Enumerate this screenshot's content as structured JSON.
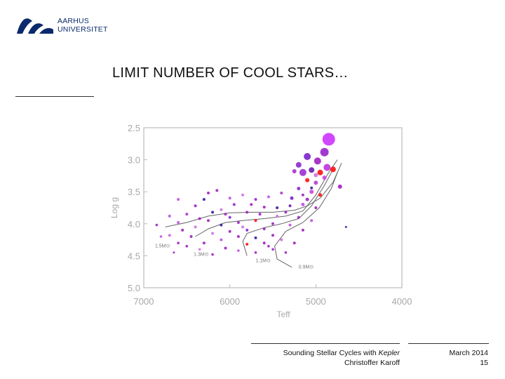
{
  "header": {
    "university_line1": "AARHUS",
    "university_line2": "UNIVERSITET",
    "title": "LIMIT NUMBER OF COOL STARS…"
  },
  "footer": {
    "subtitle_prefix": "Sounding Stellar Cycles with ",
    "subtitle_italic": "Kepler",
    "author": "Christoffer Karoff",
    "date": "March 2014",
    "page": "15"
  },
  "colors": {
    "brand": "#0a2a6b",
    "star_primary": "#a020c0",
    "star_dark": "#3a1aa0",
    "star_light": "#d070e0",
    "star_red": "#ff1010",
    "track": "#666666"
  },
  "chart_data": {
    "type": "scatter",
    "title": "",
    "xlabel": "Teff",
    "ylabel": "Log g",
    "xlim": [
      7000,
      4000
    ],
    "ylim": [
      5.0,
      2.5
    ],
    "x_reversed": true,
    "y_reversed": true,
    "x_ticks": [
      7000,
      6000,
      5000,
      4000
    ],
    "x_tick_labels": [
      "7000",
      "6000",
      "5000",
      "4000"
    ],
    "y_ticks": [
      2.5,
      3.0,
      3.5,
      4.0,
      4.5,
      5.0
    ],
    "y_tick_labels": [
      "2.5",
      "3.0",
      "3.5",
      "4.0",
      "4.5",
      "5.0"
    ],
    "grid": false,
    "tracks": [
      {
        "label": "1.5M⊙",
        "label_at": [
          6870,
          4.37
        ],
        "points": [
          [
            6750,
            4.05
          ],
          [
            6500,
            3.98
          ],
          [
            6250,
            3.88
          ],
          [
            6000,
            3.83
          ],
          [
            5750,
            3.82
          ],
          [
            5500,
            3.82
          ],
          [
            5250,
            3.79
          ],
          [
            5100,
            3.72
          ],
          [
            4950,
            3.6
          ],
          [
            4800,
            3.35
          ],
          [
            4700,
            3.05
          ]
        ]
      },
      {
        "label": "1.3M⊙",
        "label_at": [
          6420,
          4.5
        ],
        "points": [
          [
            6400,
            4.2
          ],
          [
            6250,
            4.08
          ],
          [
            6050,
            3.98
          ],
          [
            5850,
            3.95
          ],
          [
            5600,
            3.92
          ],
          [
            5350,
            3.88
          ],
          [
            5150,
            3.8
          ],
          [
            5000,
            3.55
          ],
          [
            4850,
            3.2
          ],
          [
            4750,
            3.0
          ]
        ]
      },
      {
        "label": "1.1M⊙",
        "label_at": [
          5700,
          4.6
        ],
        "points": [
          [
            5800,
            4.5
          ],
          [
            5850,
            4.28
          ],
          [
            5800,
            4.15
          ],
          [
            5600,
            4.06
          ],
          [
            5400,
            4.0
          ],
          [
            5200,
            3.92
          ],
          [
            5050,
            3.72
          ],
          [
            4900,
            3.4
          ],
          [
            4800,
            3.15
          ]
        ]
      },
      {
        "label": "0.9M⊙",
        "label_at": [
          5200,
          4.7
        ],
        "points": [
          [
            5280,
            4.68
          ],
          [
            5450,
            4.55
          ],
          [
            5480,
            4.35
          ],
          [
            5350,
            4.12
          ],
          [
            5150,
            3.98
          ],
          [
            4960,
            3.75
          ],
          [
            4820,
            3.45
          ],
          [
            4750,
            3.2
          ]
        ]
      }
    ],
    "series": [
      {
        "points": [
          [
            4850,
            2.68,
            9,
            "#cc33ff"
          ],
          [
            4900,
            2.88,
            6,
            "#9922cc"
          ],
          [
            5100,
            2.95,
            5,
            "#7a22cc"
          ],
          [
            4980,
            3.02,
            5,
            "#a020c0"
          ],
          [
            5200,
            3.08,
            4,
            "#8a2ad0"
          ],
          [
            4870,
            3.12,
            5,
            "#bb33dd"
          ],
          [
            5050,
            3.16,
            4,
            "#6a1ab0"
          ],
          [
            5150,
            3.2,
            5,
            "#9a30d0"
          ],
          [
            4950,
            3.2,
            4,
            "#ff1010"
          ],
          [
            4800,
            3.15,
            4,
            "#ff1010"
          ],
          [
            5000,
            3.24,
            3,
            "#d070e0"
          ],
          [
            5250,
            3.18,
            3,
            "#aa33cc"
          ],
          [
            4900,
            3.28,
            3,
            "#cc44dd"
          ],
          [
            5100,
            3.32,
            3,
            "#ff1010"
          ],
          [
            5000,
            3.36,
            3,
            "#b040d0"
          ],
          [
            4720,
            3.42,
            3,
            "#a020c0"
          ],
          [
            5200,
            3.45,
            2.5,
            "#8a2ad0"
          ],
          [
            5050,
            3.5,
            3,
            "#cc44dd"
          ],
          [
            5280,
            3.6,
            2.5,
            "#7a22cc"
          ],
          [
            5100,
            3.62,
            2.5,
            "#a020c0"
          ],
          [
            4950,
            3.55,
            2.5,
            "#ff1010"
          ],
          [
            5150,
            3.7,
            2.5,
            "#c050e0"
          ],
          [
            5000,
            3.75,
            2,
            "#a020c0"
          ],
          [
            5300,
            3.72,
            2,
            "#6a1ab0"
          ],
          [
            5400,
            3.52,
            2,
            "#aa33cc"
          ],
          [
            5550,
            3.58,
            2,
            "#c050e0"
          ],
          [
            5700,
            3.62,
            2,
            "#9922cc"
          ],
          [
            5850,
            3.55,
            2,
            "#d070e0"
          ],
          [
            6150,
            3.48,
            2,
            "#a020c0"
          ],
          [
            6300,
            3.62,
            2,
            "#3a1aa0"
          ],
          [
            6600,
            3.62,
            2,
            "#c050e0"
          ],
          [
            5600,
            3.74,
            2,
            "#a020c0"
          ],
          [
            5950,
            3.7,
            2,
            "#8a2ad0"
          ],
          [
            6100,
            3.78,
            2,
            "#d070e0"
          ],
          [
            6400,
            3.72,
            2,
            "#a020c0"
          ],
          [
            6200,
            3.82,
            2,
            "#3a1aa0"
          ],
          [
            6500,
            3.85,
            2,
            "#aa33cc"
          ],
          [
            6700,
            3.88,
            2,
            "#c050e0"
          ],
          [
            5800,
            3.82,
            2,
            "#a020c0"
          ],
          [
            5650,
            3.85,
            2,
            "#9922cc"
          ],
          [
            5450,
            3.88,
            2,
            "#d070e0"
          ],
          [
            5350,
            3.82,
            2,
            "#a020c0"
          ],
          [
            6000,
            3.9,
            2,
            "#8a2ad0"
          ],
          [
            6250,
            3.95,
            2,
            "#a020c0"
          ],
          [
            6600,
            3.98,
            2,
            "#c050e0"
          ],
          [
            6850,
            4.02,
            1.8,
            "#a020c0"
          ],
          [
            5700,
            3.95,
            2,
            "#ff1010"
          ],
          [
            5900,
            3.98,
            2,
            "#a020c0"
          ],
          [
            6100,
            4.02,
            2,
            "#3a1aa0"
          ],
          [
            6400,
            4.05,
            2,
            "#d070e0"
          ],
          [
            6550,
            4.1,
            2,
            "#a020c0"
          ],
          [
            5500,
            4.0,
            2,
            "#9922cc"
          ],
          [
            5300,
            4.02,
            2,
            "#c050e0"
          ],
          [
            5600,
            4.08,
            2,
            "#a020c0"
          ],
          [
            5800,
            4.1,
            2,
            "#8a2ad0"
          ],
          [
            6000,
            4.12,
            2,
            "#a020c0"
          ],
          [
            6200,
            4.15,
            2,
            "#d070e0"
          ],
          [
            6450,
            4.2,
            2,
            "#a020c0"
          ],
          [
            6700,
            4.18,
            1.8,
            "#c050e0"
          ],
          [
            5900,
            4.2,
            2,
            "#a020c0"
          ],
          [
            5700,
            4.22,
            2,
            "#3a1aa0"
          ],
          [
            5500,
            4.18,
            2,
            "#a020c0"
          ],
          [
            6100,
            4.25,
            2,
            "#c050e0"
          ],
          [
            6300,
            4.3,
            2,
            "#a020c0"
          ],
          [
            5800,
            4.32,
            2,
            "#ff1010"
          ],
          [
            5600,
            4.3,
            2,
            "#a020c0"
          ],
          [
            5400,
            4.25,
            2,
            "#d070e0"
          ],
          [
            5250,
            4.3,
            2,
            "#a020c0"
          ],
          [
            6500,
            4.35,
            1.8,
            "#a020c0"
          ],
          [
            6050,
            4.38,
            2,
            "#a020c0"
          ],
          [
            5900,
            4.42,
            1.8,
            "#c050e0"
          ],
          [
            5700,
            4.45,
            1.8,
            "#a020c0"
          ],
          [
            6200,
            4.48,
            1.8,
            "#a020c0"
          ],
          [
            5500,
            4.4,
            1.8,
            "#9922cc"
          ],
          [
            6350,
            4.4,
            1.8,
            "#d070e0"
          ],
          [
            6600,
            4.3,
            1.8,
            "#a020c0"
          ],
          [
            6800,
            4.2,
            1.8,
            "#c050e0"
          ],
          [
            5350,
            4.45,
            1.8,
            "#a020c0"
          ],
          [
            5150,
            4.1,
            2,
            "#a020c0"
          ],
          [
            5050,
            3.95,
            2,
            "#c050e0"
          ],
          [
            5200,
            3.9,
            2,
            "#a020c0"
          ],
          [
            5450,
            3.75,
            2,
            "#3a1aa0"
          ],
          [
            5750,
            3.7,
            2,
            "#a020c0"
          ],
          [
            6000,
            3.6,
            2,
            "#c050e0"
          ],
          [
            6250,
            3.52,
            2,
            "#a020c0"
          ],
          [
            6050,
            3.85,
            2,
            "#a020c0"
          ],
          [
            5850,
            4.05,
            2,
            "#d070e0"
          ],
          [
            6350,
            3.92,
            2,
            "#a020c0"
          ],
          [
            5150,
            3.55,
            2,
            "#a020c0"
          ],
          [
            4650,
            4.05,
            1.5,
            "#3a1aa0"
          ],
          [
            5050,
            3.44,
            2,
            "#3a1aa0"
          ],
          [
            6650,
            4.45,
            1.5,
            "#a020c0"
          ],
          [
            5550,
            4.35,
            1.8,
            "#a020c0"
          ]
        ]
      }
    ]
  }
}
